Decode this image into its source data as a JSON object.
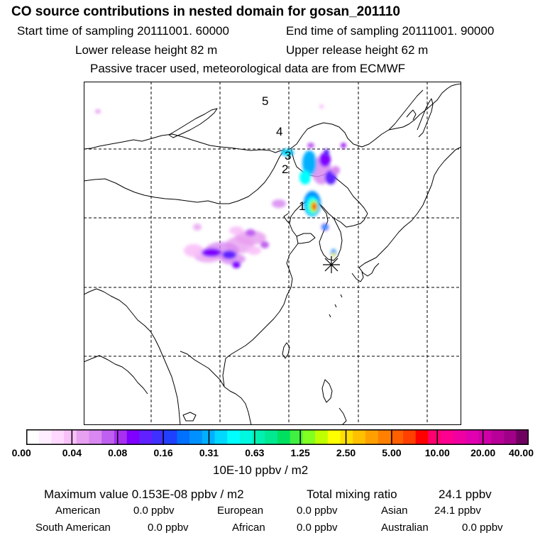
{
  "header": {
    "title": "CO  source contributions in nested domain for gosan_201110",
    "start_label": "Start time of sampling 20111001. 60000",
    "end_label": "End time of sampling 20111001. 90000",
    "lower_label": "Lower release height   82 m",
    "upper_label": "Upper release height   62 m",
    "tracer_label": "Passive tracer used, meteorological data are from ECMWF"
  },
  "map": {
    "trajectory_labels": [
      "1",
      "2",
      "3",
      "4",
      "5"
    ],
    "receptor_marker": "asterisk-marker"
  },
  "colorbar": {
    "ticks": [
      "0.00",
      "0.04",
      "0.08",
      "0.16",
      "0.31",
      "0.63",
      "1.25",
      "2.50",
      "5.00",
      "10.00",
      "20.00",
      "40.00"
    ],
    "colors": [
      "#ffffff",
      "#ffeeff",
      "#ffd8ff",
      "#f8c0f8",
      "#e8a0f0",
      "#d888f0",
      "#c060f0",
      "#a830f0",
      "#8000ff",
      "#6020ff",
      "#4030ff",
      "#2040ff",
      "#0070ff",
      "#0090ff",
      "#00b0ff",
      "#00d8ff",
      "#00ffff",
      "#00f8e0",
      "#00f0b0",
      "#00e890",
      "#00e060",
      "#40f040",
      "#80ff20",
      "#c0ff00",
      "#ffff00",
      "#ffe000",
      "#ffc000",
      "#ffa000",
      "#ff8000",
      "#ff6000",
      "#ff4000",
      "#ff0000",
      "#ff0070",
      "#ff0090",
      "#f000a0",
      "#e000b0",
      "#d000a8",
      "#b80098",
      "#a00088",
      "#700060"
    ],
    "unit": "10E-10 ppbv / m2"
  },
  "summary": {
    "max_label": "Maximum value  0.153E-08 ppbv / m2",
    "total_label": "Total mixing ratio",
    "total_value": "24.1 ppbv",
    "regions": [
      {
        "name": "American",
        "value": "0.0 ppbv"
      },
      {
        "name": "European",
        "value": "0.0 ppbv"
      },
      {
        "name": "Asian",
        "value": "24.1 ppbv"
      },
      {
        "name": "South American",
        "value": "0.0 ppbv"
      },
      {
        "name": "African",
        "value": "0.0 ppbv"
      },
      {
        "name": "Australian",
        "value": "0.0 ppbv"
      }
    ]
  }
}
